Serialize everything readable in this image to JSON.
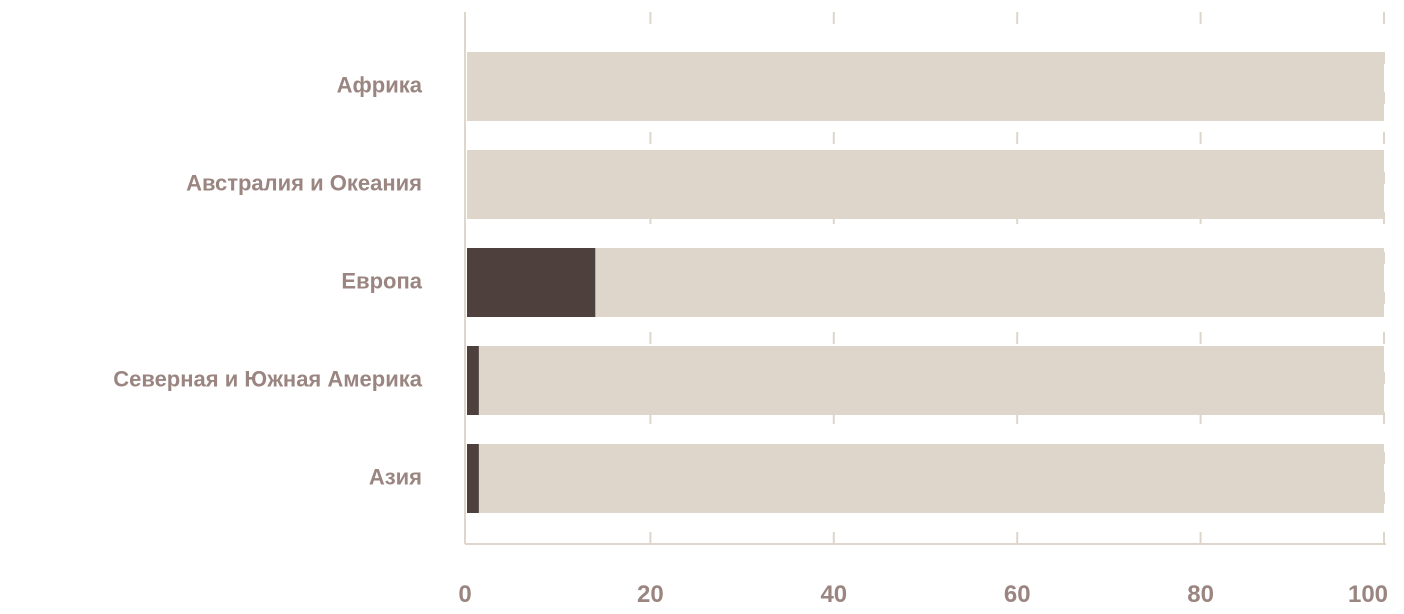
{
  "chart_data": {
    "type": "bar",
    "orientation": "horizontal",
    "stacked": true,
    "categories": [
      "Африка",
      "Австралия и Океания",
      "Европа",
      "Северная и Южная Америка",
      "Азия"
    ],
    "series": [
      {
        "values": [
          0,
          0,
          14,
          1.3,
          1.3
        ],
        "color": "#4e403c"
      },
      {
        "values": [
          100,
          100,
          86,
          98.7,
          98.7
        ],
        "color": "#ded6cb"
      }
    ],
    "x_ticks": [
      "0",
      "20",
      "40",
      "60",
      "80",
      "100"
    ],
    "xlim": [
      0,
      100
    ],
    "grid": "vertical dashed",
    "axis_color": "#ded6cb",
    "label_color": "#9b8580"
  }
}
